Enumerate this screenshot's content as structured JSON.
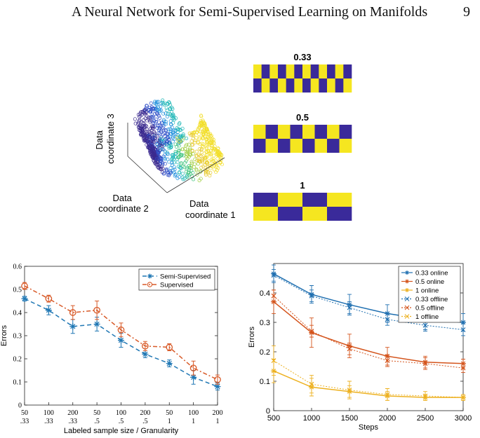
{
  "header": {
    "title": "A Neural Network for Semi-Supervised Learning on Manifolds",
    "page_number": "9"
  },
  "figure_3d": {
    "axis_labels": {
      "z": [
        "Data",
        "coordinate 3"
      ],
      "y": [
        "Data",
        "coordinate 2"
      ],
      "x": [
        "Data",
        "coordinate 1"
      ]
    }
  },
  "checkerboards": [
    {
      "label": "0.33",
      "tiles": 12,
      "top_start": "yellow"
    },
    {
      "label": "0.5",
      "tiles": 8,
      "top_start": "yellow"
    },
    {
      "label": "1",
      "tiles": 4,
      "top_start": "blue"
    }
  ],
  "colors": {
    "checker_yellow": "#f5e620",
    "checker_blue": "#3a2a9a",
    "semi": "#1f77b4",
    "supervised": "#d85a28",
    "c033": "#1f6fb0",
    "c05": "#d4541c",
    "c1": "#edb120"
  },
  "chart_data": [
    {
      "type": "line",
      "ylabel": "Errors",
      "xlabel": "Labeled sample size / Granularity",
      "categories": [
        "50\n.33",
        "100\n.33",
        "200\n.33",
        "50\n.5",
        "100\n.5",
        "200\n.5",
        "50\n1",
        "100\n1",
        "200\n1"
      ],
      "category_top": [
        "50",
        "100",
        "200",
        "50",
        "100",
        "200",
        "50",
        "100",
        "200"
      ],
      "category_bottom": [
        ".33",
        ".33",
        ".33",
        ".5",
        ".5",
        ".5",
        "1",
        "1",
        "1"
      ],
      "ylim": [
        0,
        0.6
      ],
      "yticks": [
        "0",
        "0.1",
        "0.2",
        "0.3",
        "0.4",
        "0.5",
        "0.6"
      ],
      "legend_position": "top-right",
      "series": [
        {
          "name": "Semi-Supervised",
          "values": [
            0.46,
            0.41,
            0.34,
            0.35,
            0.28,
            0.22,
            0.18,
            0.12,
            0.08
          ],
          "err": [
            0.01,
            0.02,
            0.03,
            0.03,
            0.03,
            0.015,
            0.015,
            0.03,
            0.015
          ]
        },
        {
          "name": "Supervised",
          "values": [
            0.515,
            0.46,
            0.4,
            0.41,
            0.325,
            0.255,
            0.25,
            0.16,
            0.11
          ],
          "err": [
            0.015,
            0.015,
            0.03,
            0.04,
            0.03,
            0.02,
            0.015,
            0.03,
            0.02
          ]
        }
      ]
    },
    {
      "type": "line",
      "ylabel": "Errors",
      "xlabel": "Steps",
      "x": [
        500,
        1000,
        1500,
        2000,
        2500,
        3000
      ],
      "xticks": [
        "500",
        "1000",
        "1500",
        "2000",
        "2500",
        "3000"
      ],
      "ylim": [
        0,
        0.5
      ],
      "yticks": [
        "0",
        "0.1",
        "0.2",
        "0.3",
        "0.4"
      ],
      "legend_position": "top-right",
      "grid": false,
      "series": [
        {
          "name": "0.33 online",
          "values": [
            0.465,
            0.395,
            0.36,
            0.33,
            0.31,
            0.3
          ],
          "err": [
            0.03,
            0.03,
            0.035,
            0.03,
            0.035,
            0.03
          ]
        },
        {
          "name": "0.5 online",
          "values": [
            0.37,
            0.265,
            0.22,
            0.185,
            0.165,
            0.16
          ],
          "err": [
            0.04,
            0.05,
            0.04,
            0.03,
            0.02,
            0.015
          ]
        },
        {
          "name": "1 online",
          "values": [
            0.135,
            0.08,
            0.065,
            0.05,
            0.045,
            0.045
          ],
          "err": [
            0.04,
            0.03,
            0.02,
            0.015,
            0.01,
            0.01
          ]
        },
        {
          "name": "0.33 offline",
          "values": [
            0.46,
            0.39,
            0.35,
            0.31,
            0.29,
            0.275
          ],
          "err": [
            0.02,
            0.02,
            0.02,
            0.02,
            0.02,
            0.02
          ]
        },
        {
          "name": "0.5 offline",
          "values": [
            0.39,
            0.27,
            0.21,
            0.17,
            0.16,
            0.145
          ],
          "err": [
            0.02,
            0.02,
            0.02,
            0.02,
            0.02,
            0.015
          ]
        },
        {
          "name": "1 offline",
          "values": [
            0.17,
            0.09,
            0.07,
            0.055,
            0.05,
            0.045
          ],
          "err": [
            0.05,
            0.03,
            0.03,
            0.02,
            0.015,
            0.01
          ]
        }
      ]
    }
  ]
}
